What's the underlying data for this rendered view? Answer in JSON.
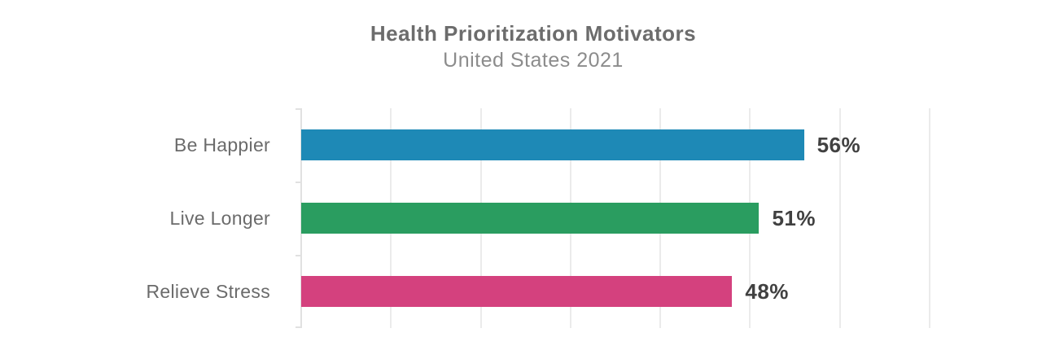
{
  "header": {
    "title": "Health Prioritization Motivators",
    "subtitle": "United States 2021"
  },
  "chart_data": {
    "type": "bar",
    "orientation": "horizontal",
    "title": "Health Prioritization Motivators",
    "subtitle": "United States 2021",
    "categories": [
      "Be Happier",
      "Live Longer",
      "Relieve Stress"
    ],
    "values": [
      56,
      51,
      48
    ],
    "value_labels": [
      "56%",
      "51%",
      "48%"
    ],
    "bar_colors": [
      "#1e89b6",
      "#2a9d60",
      "#d4417e"
    ],
    "xlabel": "",
    "ylabel": "",
    "xlim": [
      0,
      70
    ],
    "gridline_step": 10,
    "grid": true,
    "axis_tick_labels_shown": false,
    "legend_position": "none"
  },
  "style": {
    "background": "#ffffff",
    "title_color": "#6c6c6c",
    "subtitle_color": "#8c8c8c",
    "category_label_color": "#6b6b6b",
    "value_label_color": "#414141",
    "gridline_color": "#ebebeb",
    "axis_color": "#e1e1e1"
  }
}
